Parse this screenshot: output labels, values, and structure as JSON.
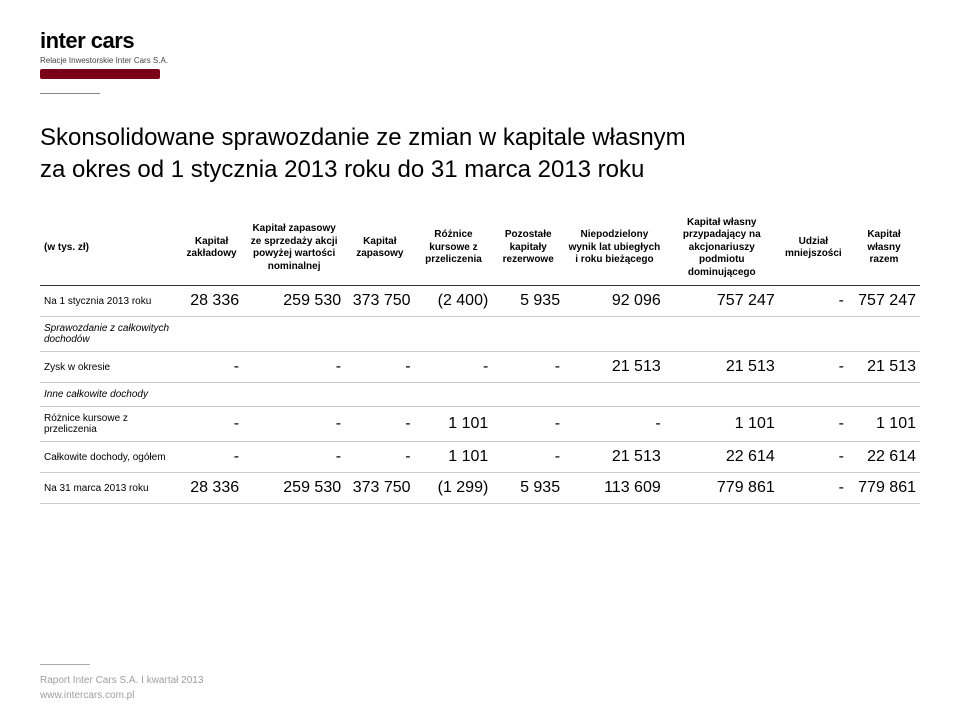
{
  "logo": {
    "main": "inter cars",
    "sub": "Relacje Inwestorskie Inter Cars S.A."
  },
  "title": {
    "line1": "Skonsolidowane sprawozdanie ze zmian w kapitale własnym",
    "line2": "za okres od 1 stycznia 2013 roku do 31 marca 2013 roku"
  },
  "table": {
    "columns": [
      "(w tys. zł)",
      "Kapitał zakładowy",
      "Kapitał zapasowy ze sprzedaży akcji powyżej wartości nominalnej",
      "Kapitał zapasowy",
      "Różnice kursowe z przeliczenia",
      "Pozostałe kapitały rezerwowe",
      "Niepodzielony wynik lat ubiegłych i roku bieżącego",
      "Kapitał własny przypadający na akcjonariuszy podmiotu dominującego",
      "Udział mniejszości",
      "Kapitał własny razem"
    ],
    "rows": [
      {
        "label": "Na 1 stycznia 2013 roku",
        "vals": [
          "28 336",
          "259 530",
          "373 750",
          "(2 400)",
          "5 935",
          "92 096",
          "757 247",
          "-",
          "757 247"
        ],
        "section": false
      },
      {
        "label": "Sprawozdanie z całkowitych dochodów",
        "vals": [
          "",
          "",
          "",
          "",
          "",
          "",
          "",
          "",
          ""
        ],
        "section": true
      },
      {
        "label": "Zysk w okresie",
        "vals": [
          "-",
          "-",
          "-",
          "-",
          "-",
          "21 513",
          "21 513",
          "-",
          "21 513"
        ],
        "section": false
      },
      {
        "label": "Inne całkowite dochody",
        "vals": [
          "",
          "",
          "",
          "",
          "",
          "",
          "",
          "",
          ""
        ],
        "section": true
      },
      {
        "label": "Różnice kursowe z przeliczenia",
        "vals": [
          "-",
          "-",
          "-",
          "1 101",
          "-",
          "-",
          "1 101",
          "-",
          "1 101"
        ],
        "section": false
      },
      {
        "label": "Całkowite dochody, ogółem",
        "vals": [
          "-",
          "-",
          "-",
          "1 101",
          "-",
          "21 513",
          "22 614",
          "-",
          "22 614"
        ],
        "section": false
      },
      {
        "label": "Na 31 marca 2013 roku",
        "vals": [
          "28 336",
          "259 530",
          "373 750",
          "(1 299)",
          "5 935",
          "113 609",
          "779 861",
          "-",
          "779 861"
        ],
        "section": false
      }
    ]
  },
  "footer": {
    "line1": "Raport Inter Cars S.A. I kwartał 2013",
    "line2": "www.intercars.com.pl"
  }
}
